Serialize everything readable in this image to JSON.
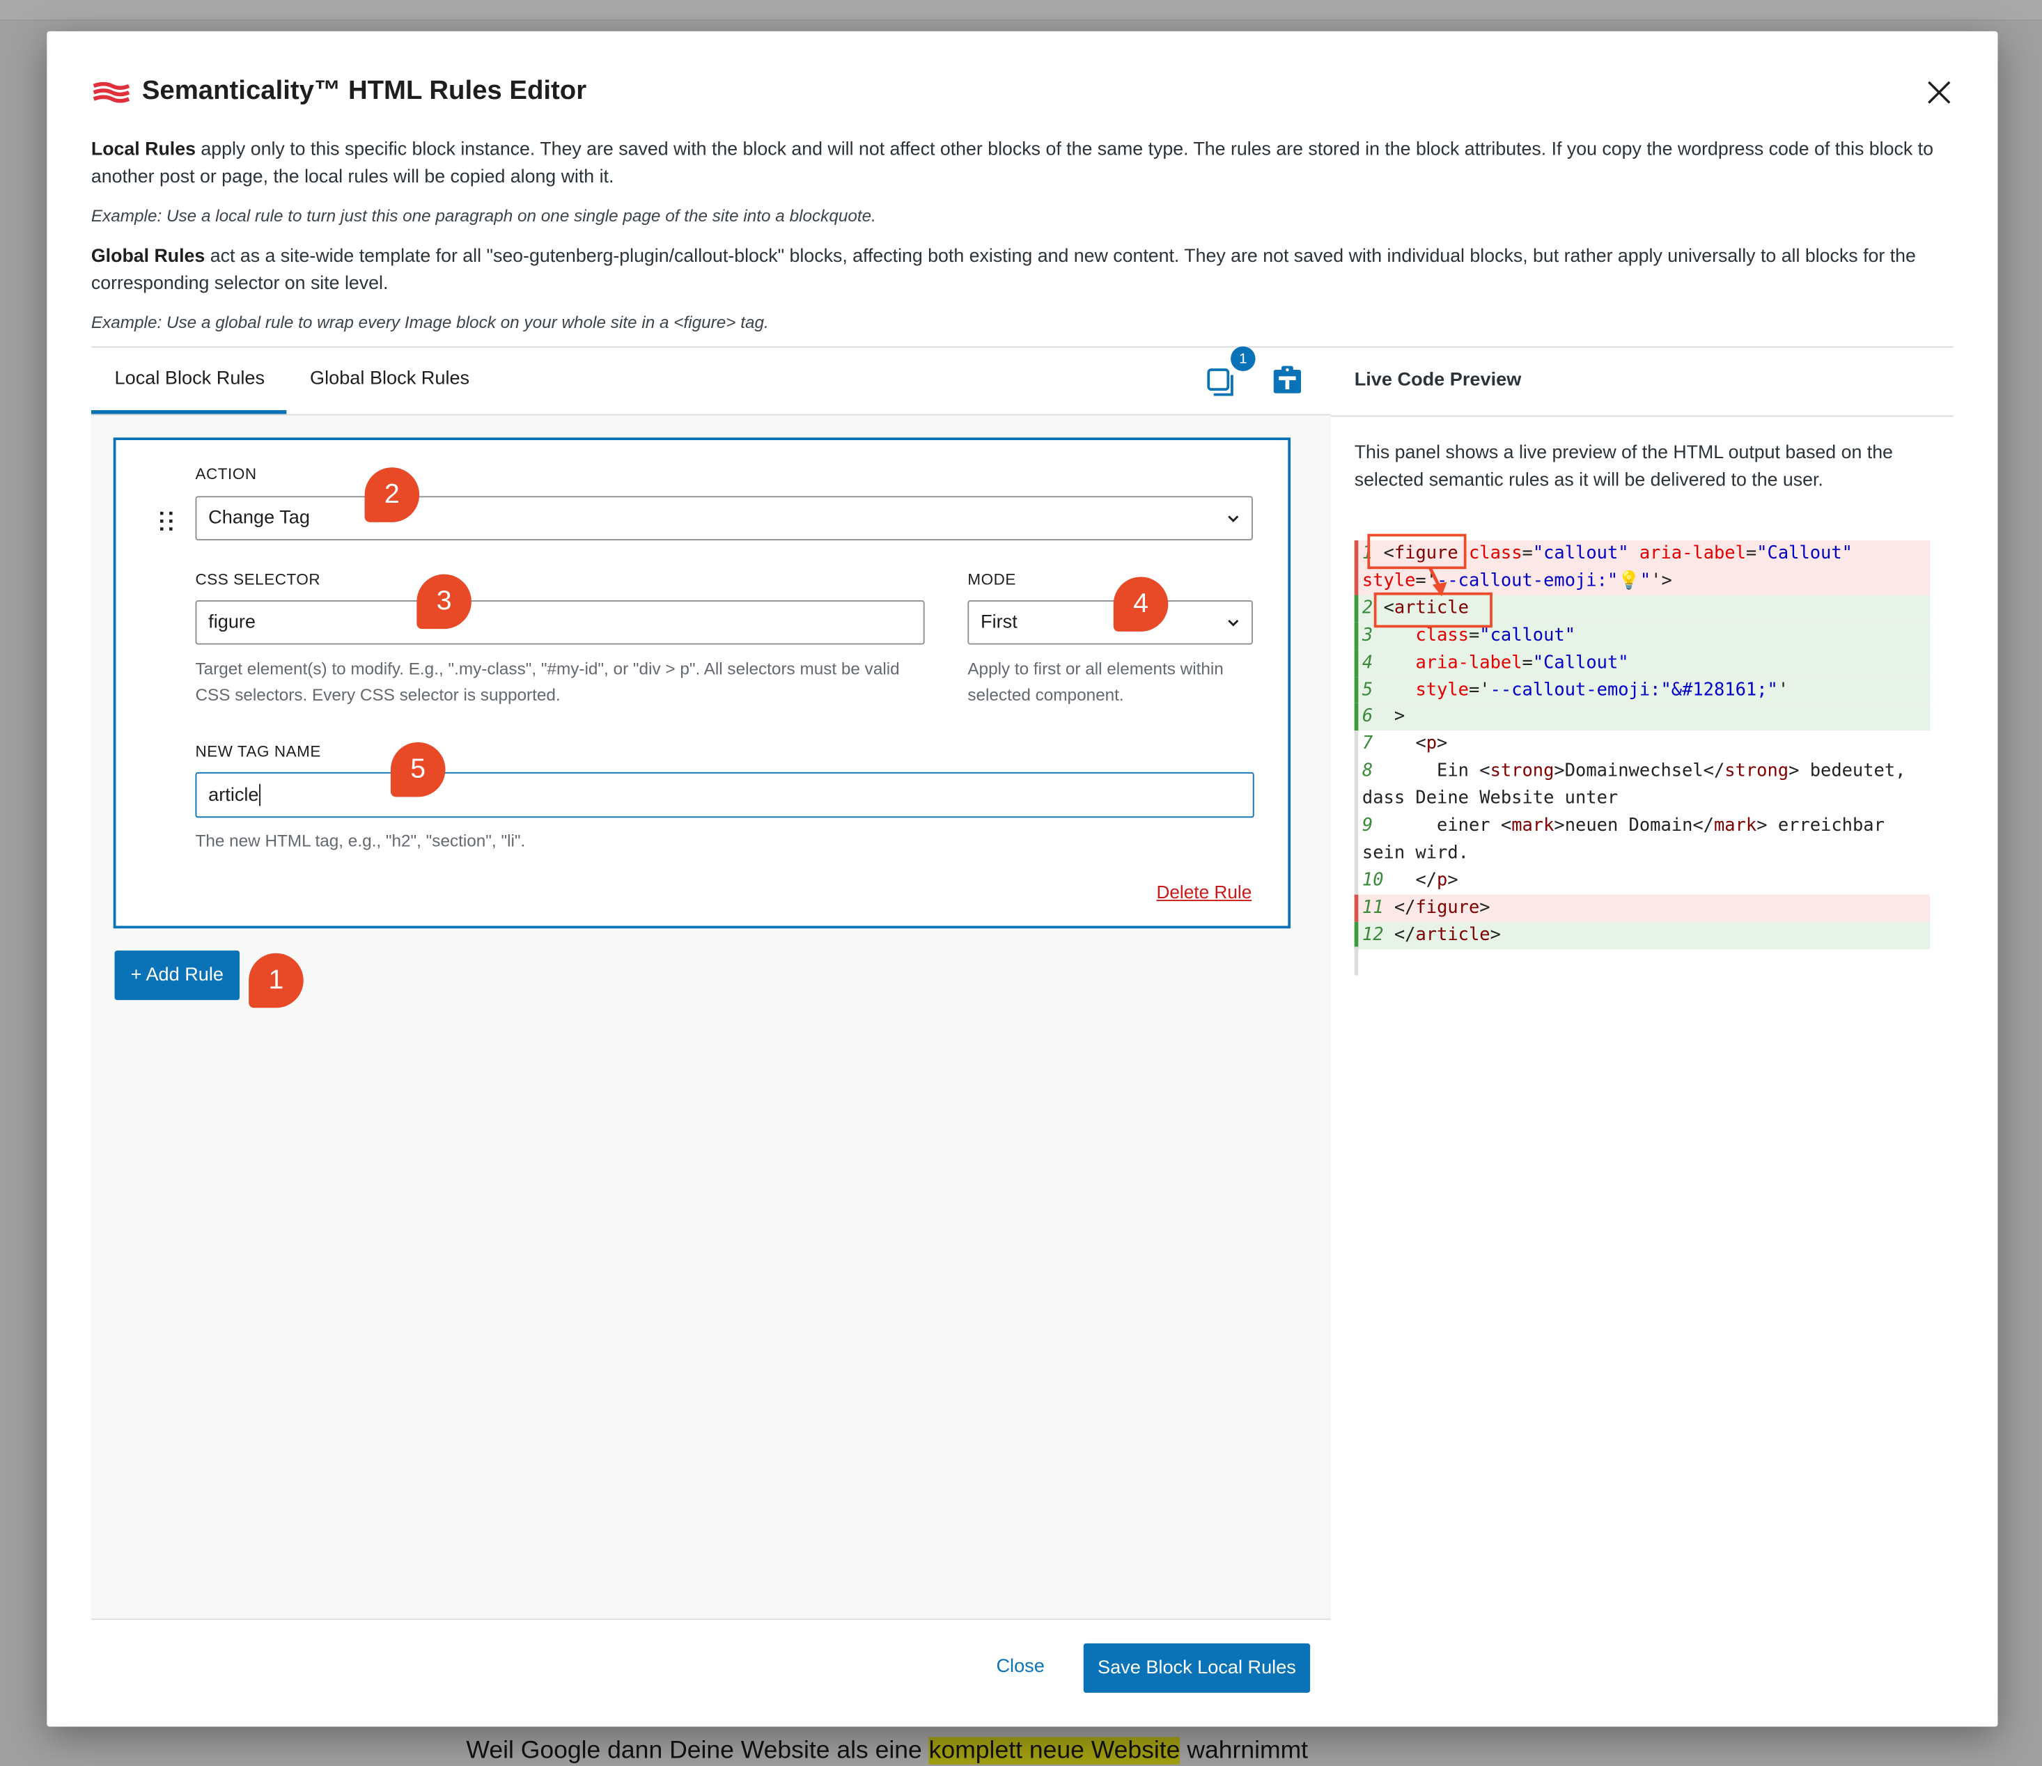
{
  "background_text": {
    "before": "Weil Google dann Deine Website als eine ",
    "highlight": "komplett neue Website",
    "after": " wahrnimmt"
  },
  "modal": {
    "title": "Semanticality™ HTML Rules Editor",
    "logo": "semanticality-logo",
    "close_icon": "close-icon",
    "intro": {
      "local_bold": "Local Rules",
      "local_text": " apply only to this specific block instance. They are saved with the block and will not affect other blocks of the same type. The rules are stored in the block attributes. If you copy the wordpress code of this block to another post or page, the local rules will be copied along with it.",
      "local_example": "Example: Use a local rule to turn just this one paragraph on one single page of the site into a blockquote.",
      "global_bold": "Global Rules",
      "global_text": " act as a site-wide template for all \"seo-gutenberg-plugin/callout-block\" blocks, affecting both existing and new content. They are not saved with individual blocks, but rather apply universally to all blocks for the corresponding selector on site level.",
      "global_example": "Example: Use a global rule to wrap every Image block on your whole site in a <figure> tag."
    },
    "tabs": [
      {
        "label": "Local Block Rules",
        "active": true
      },
      {
        "label": "Global Block Rules",
        "active": false
      }
    ],
    "toolbar": {
      "copy_icon": "copy-icon",
      "copy_badge": "1",
      "paste_icon": "clipboard-paste-icon"
    },
    "rule": {
      "action_label": "ACTION",
      "action_value": "Change Tag",
      "selector_label": "CSS SELECTOR",
      "selector_value": "figure",
      "selector_help": "Target element(s) to modify. E.g., \".my-class\", \"#my-id\", or \"div > p\". All selectors must be valid CSS selectors. Every CSS selector is supported.",
      "mode_label": "MODE",
      "mode_value": "First",
      "mode_help": "Apply to first or all elements within selected component.",
      "tag_label": "NEW TAG NAME",
      "tag_value": "article",
      "tag_help": "The new HTML tag, e.g., \"h2\", \"section\", \"li\".",
      "delete_label": "Delete Rule"
    },
    "add_rule_label": "+ Add Rule",
    "markers": [
      "1",
      "2",
      "3",
      "4",
      "5"
    ],
    "footer": {
      "close_label": "Close",
      "save_label": "Save Block Local Rules"
    },
    "preview": {
      "title": "Live Code Preview",
      "description": "This panel shows a live preview of the HTML output based on the selected semantic rules as it will be delivered to the user.",
      "lines": [
        {
          "n": "1",
          "kind": "removed",
          "tokens": [
            [
              "p",
              " <"
            ],
            [
              "tag",
              "figure"
            ],
            [
              "p",
              " "
            ],
            [
              "attr",
              "class"
            ],
            [
              "p",
              "="
            ],
            [
              "val",
              "\"callout\""
            ],
            [
              "p",
              " "
            ],
            [
              "attr",
              "aria-label"
            ],
            [
              "p",
              "="
            ],
            [
              "val",
              "\"Callout\""
            ],
            [
              "p",
              " "
            ],
            [
              "attr",
              "style"
            ],
            [
              "p",
              "='"
            ],
            [
              "val",
              "--callout-emoji:\"💡\""
            ],
            [
              "p",
              "'>"
            ]
          ]
        },
        {
          "n": "2",
          "kind": "added",
          "tokens": [
            [
              "p",
              " <"
            ],
            [
              "tag",
              "article"
            ]
          ]
        },
        {
          "n": "3",
          "kind": "added",
          "tokens": [
            [
              "p",
              "    "
            ],
            [
              "attr",
              "class"
            ],
            [
              "p",
              "="
            ],
            [
              "val",
              "\"callout\""
            ]
          ]
        },
        {
          "n": "4",
          "kind": "added",
          "tokens": [
            [
              "p",
              "    "
            ],
            [
              "attr",
              "aria-label"
            ],
            [
              "p",
              "="
            ],
            [
              "val",
              "\"Callout\""
            ]
          ]
        },
        {
          "n": "5",
          "kind": "added",
          "tokens": [
            [
              "p",
              "    "
            ],
            [
              "attr",
              "style"
            ],
            [
              "p",
              "='"
            ],
            [
              "val",
              "--callout-emoji:\"&#128161;\""
            ],
            [
              "p",
              "'"
            ]
          ]
        },
        {
          "n": "6",
          "kind": "added",
          "tokens": [
            [
              "p",
              "  >"
            ]
          ]
        },
        {
          "n": "7",
          "kind": "none",
          "tokens": [
            [
              "p",
              "    <"
            ],
            [
              "tag",
              "p"
            ],
            [
              "p",
              ">"
            ]
          ]
        },
        {
          "n": "8",
          "kind": "none",
          "tokens": [
            [
              "txt",
              "      Ein <"
            ],
            [
              "tag",
              "strong"
            ],
            [
              "txt",
              ">Domainwechsel</"
            ],
            [
              "tag",
              "strong"
            ],
            [
              "txt",
              "> bedeutet, dass Deine Website unter"
            ]
          ]
        },
        {
          "n": "9",
          "kind": "none",
          "tokens": [
            [
              "txt",
              "      einer <"
            ],
            [
              "tag",
              "mark"
            ],
            [
              "txt",
              ">neuen Domain</"
            ],
            [
              "tag",
              "mark"
            ],
            [
              "txt",
              "> erreichbar sein wird."
            ]
          ]
        },
        {
          "n": "10",
          "kind": "none",
          "tokens": [
            [
              "p",
              "   </"
            ],
            [
              "tag",
              "p"
            ],
            [
              "p",
              ">"
            ]
          ]
        },
        {
          "n": "11",
          "kind": "removed",
          "tokens": [
            [
              "p",
              " </"
            ],
            [
              "tag",
              "figure"
            ],
            [
              "p",
              ">"
            ]
          ]
        },
        {
          "n": "12",
          "kind": "added",
          "tokens": [
            [
              "p",
              " </"
            ],
            [
              "tag",
              "article"
            ],
            [
              "p",
              ">"
            ]
          ]
        }
      ]
    }
  },
  "colors": {
    "accent": "#0a73b8",
    "marker": "#e84a27",
    "delete": "#cc1818",
    "removed_bg": "#fde8e8",
    "added_bg": "#e7f3e7"
  }
}
